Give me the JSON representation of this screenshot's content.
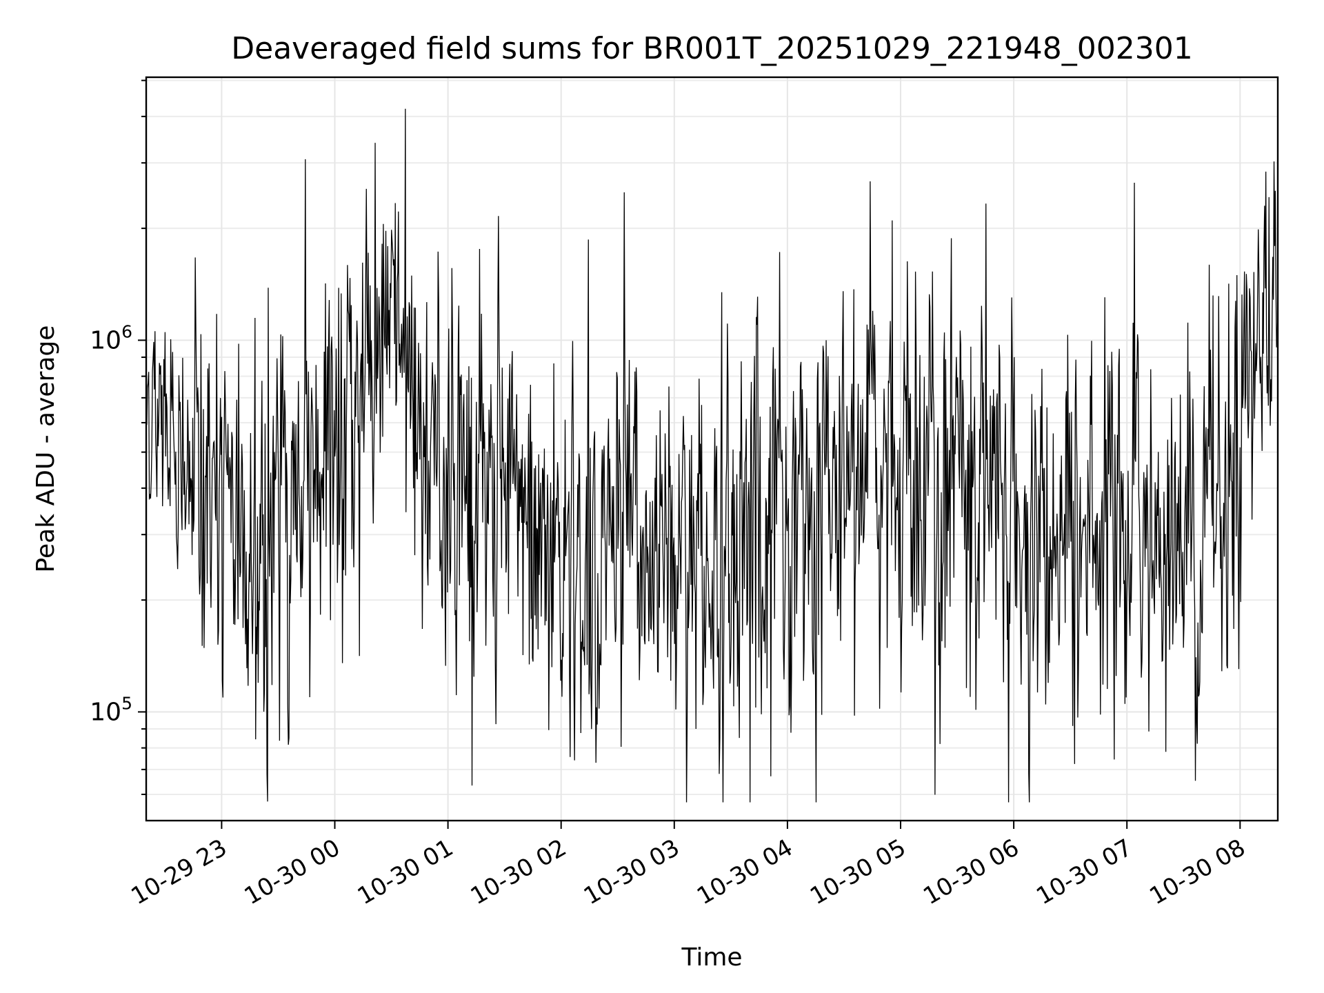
{
  "chart_data": {
    "type": "line",
    "title": "Deaveraged field sums for BR001T_20251029_221948_002301",
    "xlabel": "Time",
    "ylabel": "Peak ADU - average",
    "y_scale": "log",
    "ylim": [
      51000,
      5100000
    ],
    "xlim": [
      "2025-10-29 22:20",
      "2025-10-30 08:20"
    ],
    "x_ticks": [
      {
        "t": "2025-10-29 23:00",
        "label": "10-29 23"
      },
      {
        "t": "2025-10-30 00:00",
        "label": "10-30 00"
      },
      {
        "t": "2025-10-30 01:00",
        "label": "10-30 01"
      },
      {
        "t": "2025-10-30 02:00",
        "label": "10-30 02"
      },
      {
        "t": "2025-10-30 03:00",
        "label": "10-30 03"
      },
      {
        "t": "2025-10-30 04:00",
        "label": "10-30 04"
      },
      {
        "t": "2025-10-30 05:00",
        "label": "10-30 05"
      },
      {
        "t": "2025-10-30 06:00",
        "label": "10-30 06"
      },
      {
        "t": "2025-10-30 07:00",
        "label": "10-30 07"
      },
      {
        "t": "2025-10-30 08:00",
        "label": "10-30 08"
      }
    ],
    "y_ticks": [
      {
        "value": 100000,
        "base": "10",
        "exponent": "5"
      },
      {
        "value": 1000000,
        "base": "10",
        "exponent": "6"
      }
    ],
    "grid": true,
    "line_color": "#000000",
    "series": [
      {
        "x": [
          "2025-10-29 22:20",
          "2025-10-29 22:30",
          "2025-10-29 22:40",
          "2025-10-29 22:50",
          "2025-10-29 23:00",
          "2025-10-29 23:10",
          "2025-10-29 23:20",
          "2025-10-29 23:30",
          "2025-10-29 23:40",
          "2025-10-29 23:50",
          "2025-10-30 00:00",
          "2025-10-30 00:10",
          "2025-10-30 00:20",
          "2025-10-30 00:30",
          "2025-10-30 00:40",
          "2025-10-30 00:50",
          "2025-10-30 01:00",
          "2025-10-30 01:10",
          "2025-10-30 01:20",
          "2025-10-30 01:30",
          "2025-10-30 01:40",
          "2025-10-30 01:50",
          "2025-10-30 02:00",
          "2025-10-30 02:10",
          "2025-10-30 02:20",
          "2025-10-30 02:30",
          "2025-10-30 02:40",
          "2025-10-30 02:50",
          "2025-10-30 03:00",
          "2025-10-30 03:10",
          "2025-10-30 03:20",
          "2025-10-30 03:30",
          "2025-10-30 03:40",
          "2025-10-30 03:50",
          "2025-10-30 04:00",
          "2025-10-30 04:10",
          "2025-10-30 04:20",
          "2025-10-30 04:30",
          "2025-10-30 04:40",
          "2025-10-30 04:50",
          "2025-10-30 05:00",
          "2025-10-30 05:10",
          "2025-10-30 05:20",
          "2025-10-30 05:30",
          "2025-10-30 05:40",
          "2025-10-30 05:50",
          "2025-10-30 06:00",
          "2025-10-30 06:10",
          "2025-10-30 06:20",
          "2025-10-30 06:30",
          "2025-10-30 06:40",
          "2025-10-30 06:50",
          "2025-10-30 07:00",
          "2025-10-30 07:10",
          "2025-10-30 07:20",
          "2025-10-30 07:30",
          "2025-10-30 07:40",
          "2025-10-30 07:50",
          "2025-10-30 08:00",
          "2025-10-30 08:10",
          "2025-10-30 08:20"
        ],
        "center": [
          700000,
          560000,
          420000,
          380000,
          330000,
          270000,
          270000,
          330000,
          420000,
          470000,
          520000,
          540000,
          800000,
          1000000,
          750000,
          560000,
          460000,
          470000,
          420000,
          370000,
          300000,
          250000,
          260000,
          250000,
          270000,
          320000,
          330000,
          320000,
          300000,
          240000,
          240000,
          310000,
          360000,
          330000,
          330000,
          370000,
          420000,
          460000,
          470000,
          460000,
          500000,
          520000,
          470000,
          460000,
          390000,
          390000,
          350000,
          300000,
          270000,
          280000,
          310000,
          330000,
          350000,
          320000,
          300000,
          310000,
          330000,
          370000,
          550000,
          900000,
          1100000
        ],
        "spread_low": [
          0.5,
          0.45,
          0.35,
          0.3,
          0.3,
          0.3,
          0.3,
          0.3,
          0.3,
          0.3,
          0.3,
          0.3,
          0.35,
          0.4,
          0.35,
          0.3,
          0.3,
          0.3,
          0.3,
          0.3,
          0.3,
          0.3,
          0.3,
          0.3,
          0.3,
          0.3,
          0.3,
          0.3,
          0.3,
          0.3,
          0.3,
          0.3,
          0.3,
          0.25,
          0.25,
          0.25,
          0.25,
          0.3,
          0.3,
          0.3,
          0.3,
          0.3,
          0.3,
          0.25,
          0.25,
          0.25,
          0.25,
          0.3,
          0.3,
          0.3,
          0.3,
          0.3,
          0.3,
          0.3,
          0.3,
          0.3,
          0.3,
          0.3,
          0.35,
          0.4,
          0.45
        ],
        "spread_high": [
          2.2,
          2.4,
          2.8,
          3.0,
          3.0,
          3.2,
          3.4,
          3.6,
          3.4,
          3.2,
          3.0,
          3.0,
          3.0,
          2.8,
          3.2,
          3.0,
          3.0,
          3.4,
          3.0,
          2.8,
          2.8,
          3.0,
          3.0,
          3.0,
          3.0,
          3.0,
          3.0,
          3.0,
          2.8,
          3.0,
          3.2,
          3.2,
          3.2,
          3.0,
          3.0,
          3.0,
          3.0,
          3.0,
          3.0,
          3.0,
          3.0,
          3.2,
          3.2,
          3.0,
          3.0,
          3.2,
          3.2,
          3.0,
          3.0,
          3.0,
          3.0,
          3.0,
          3.0,
          3.0,
          3.0,
          3.0,
          3.0,
          3.0,
          3.0,
          3.6,
          4.2
        ]
      }
    ],
    "n_points": 1800
  }
}
